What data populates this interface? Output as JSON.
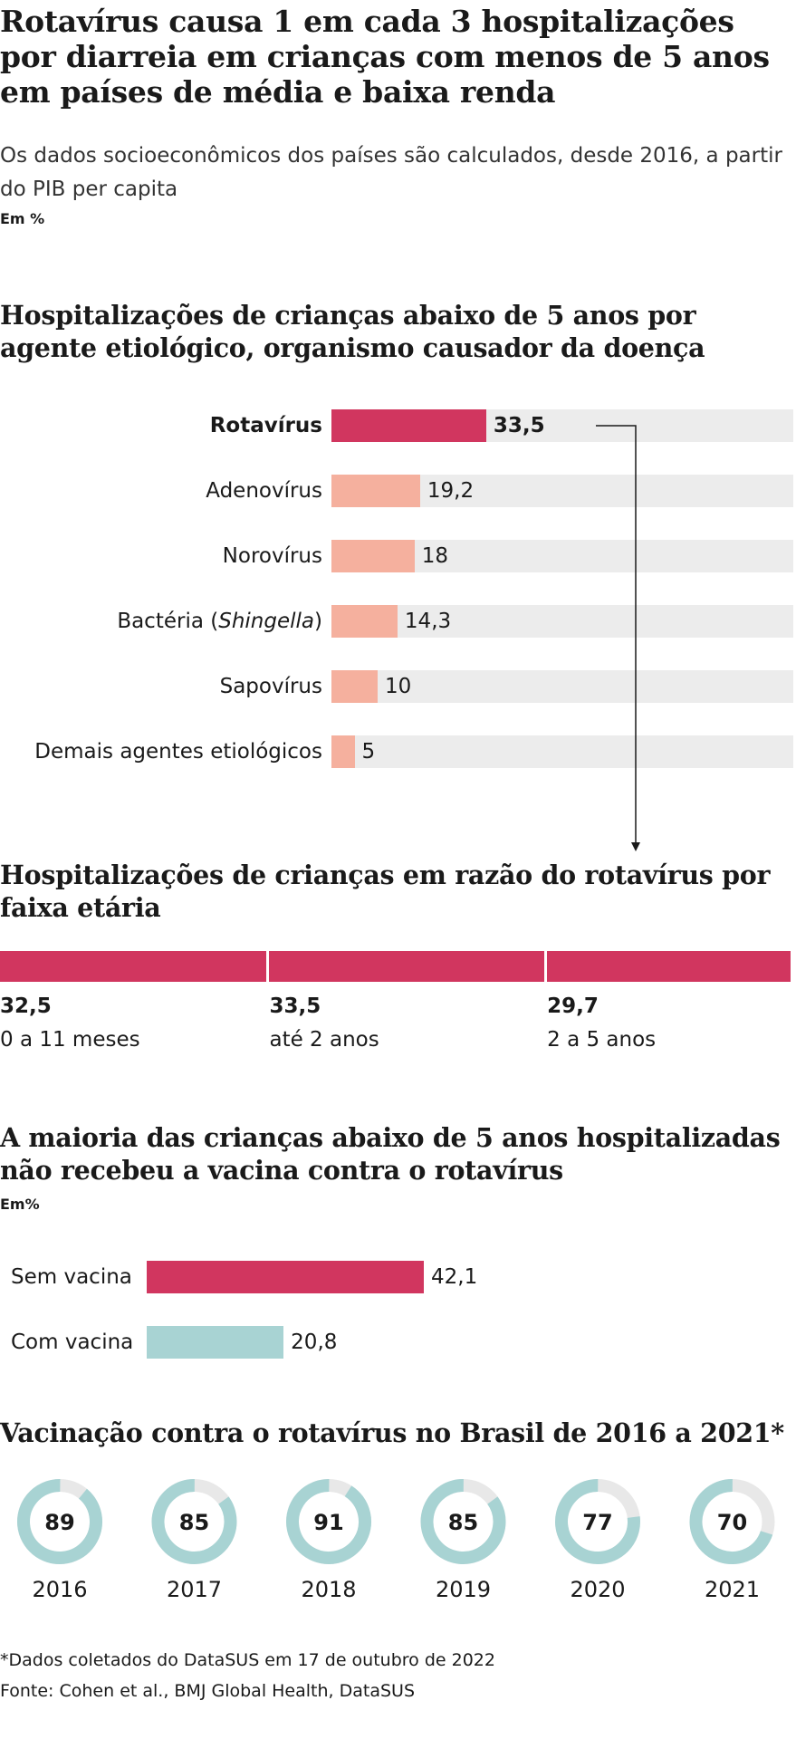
{
  "title": "Rotavírus causa 1 em cada 3 hospitalizações por diarreia em crianças com menos de 5 anos em países de média e baixa renda",
  "subtitle": "Os dados socioeconômicos dos países são calculados, desde 2016, a partir do PIB per capita",
  "unit_top": "Em %",
  "colors": {
    "accent": "#d1365f",
    "light_accent": "#f5b09e",
    "track": "#ececec",
    "teal": "#a8d3d3",
    "ring_track": "#e8e8e8"
  },
  "chart_data": [
    {
      "type": "bar",
      "title": "Hospitalizações de crianças abaixo de 5 anos por agente etiológico, organismo causador da doença",
      "categories": [
        "Rotavírus",
        "Adenovírus",
        "Norovírus",
        "Bactéria (Shingella)",
        "Sapovírus",
        "Demais agentes etiológicos"
      ],
      "labels": [
        {
          "text": "Rotavírus",
          "italic": ""
        },
        {
          "text": "Adenovírus",
          "italic": ""
        },
        {
          "text": "Norovírus",
          "italic": ""
        },
        {
          "text": "Bactéria (",
          "italic": "Shingella",
          "tail": ")"
        },
        {
          "text": "Sapovírus",
          "italic": ""
        },
        {
          "text": "Demais agentes etiológicos",
          "italic": ""
        }
      ],
      "values": [
        33.5,
        19.2,
        18,
        14.3,
        10,
        5
      ],
      "value_labels": [
        "33,5",
        "19,2",
        "18",
        "14,3",
        "10",
        "5"
      ],
      "xlim": [
        0,
        100
      ]
    },
    {
      "type": "bar",
      "title": "Hospitalizações de crianças em razão do rotavírus por faixa etária",
      "categories": [
        "0 a 11 meses",
        "até 2 anos",
        "2 a 5 anos"
      ],
      "values": [
        32.5,
        33.5,
        29.7
      ],
      "value_labels": [
        "32,5",
        "33,5",
        "29,7"
      ]
    },
    {
      "type": "bar",
      "title": "A maioria das crianças abaixo de 5 anos hospitalizadas não recebeu a vacina contra o rotavírus",
      "unit": "Em%",
      "categories": [
        "Sem vacina",
        "Com vacina"
      ],
      "values": [
        42.1,
        20.8
      ],
      "value_labels": [
        "42,1",
        "20,8"
      ]
    },
    {
      "type": "pie",
      "title": "Vacinação contra o rotavírus no Brasil de 2016 a 2021*",
      "categories": [
        "2016",
        "2017",
        "2018",
        "2019",
        "2020",
        "2021"
      ],
      "values": [
        89,
        85,
        91,
        85,
        77,
        70
      ]
    }
  ],
  "footnote": "*Dados coletados do DataSUS em 17 de outubro de 2022",
  "source": "Fonte: Cohen et al., BMJ Global Health, DataSUS"
}
